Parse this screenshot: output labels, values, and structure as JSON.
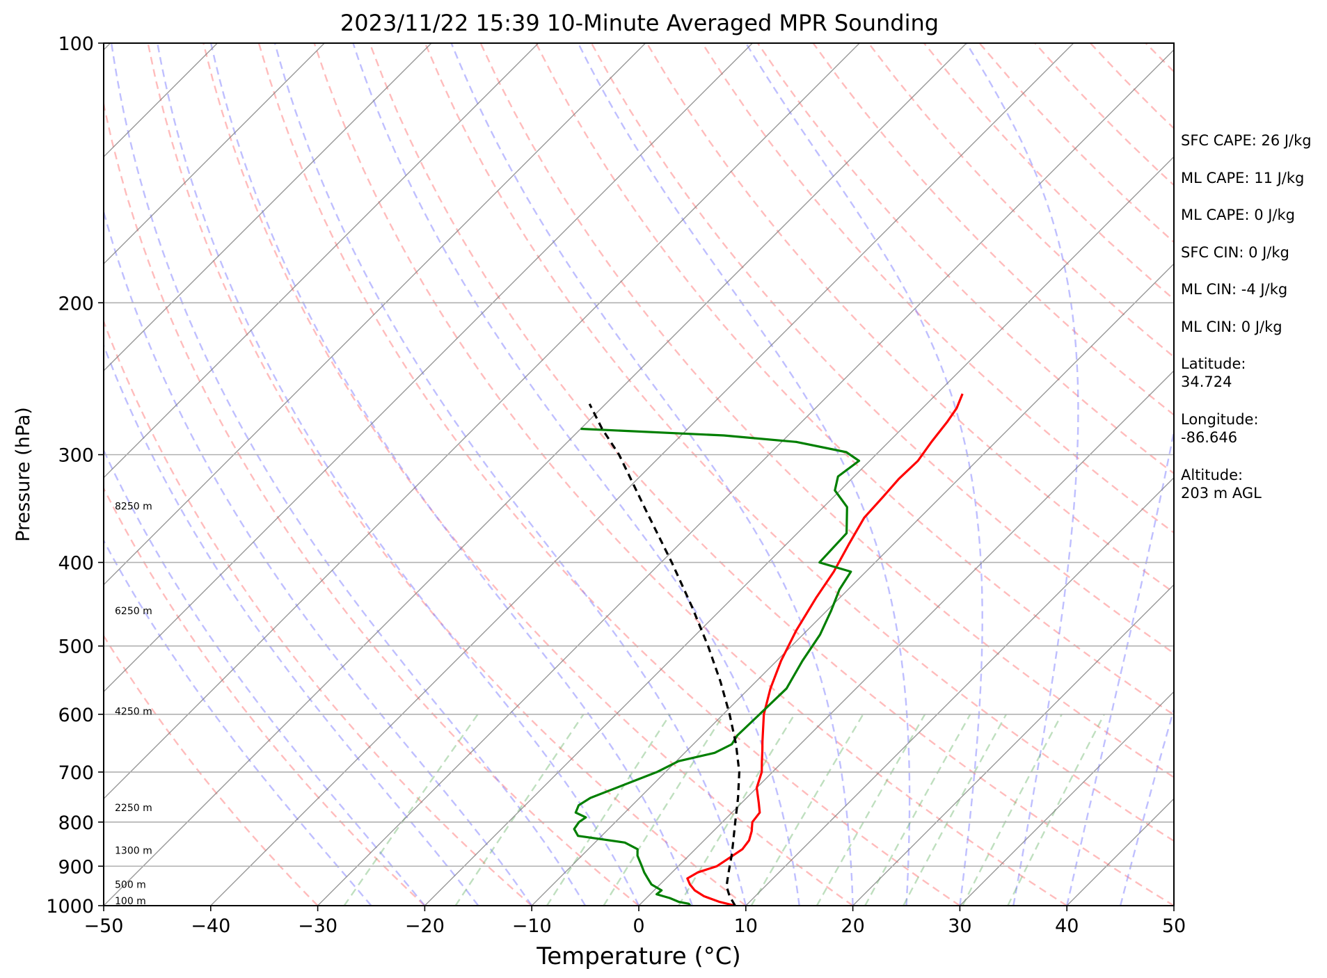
{
  "chart_data": {
    "type": "skew-t",
    "title": "2023/11/22 15:39 10-Minute Averaged MPR Sounding",
    "xlabel": "Temperature (°C)",
    "ylabel": "Pressure (hPa)",
    "xlim": [
      -50,
      50
    ],
    "ylim": [
      1000,
      100
    ],
    "y_scale": "log",
    "x_ticks": [
      -50,
      -40,
      -30,
      -20,
      -10,
      0,
      10,
      20,
      30,
      40,
      50
    ],
    "x_tick_labels": [
      "−50",
      "−40",
      "−30",
      "−20",
      "−10",
      "0",
      "10",
      "20",
      "30",
      "40",
      "50"
    ],
    "y_ticks": [
      1000,
      900,
      800,
      700,
      600,
      500,
      400,
      300,
      200,
      100
    ],
    "y_tick_labels": [
      "1000",
      "900",
      "800",
      "700",
      "600",
      "500",
      "400",
      "300",
      "200",
      "100"
    ],
    "grid": true,
    "series": [
      {
        "key": "temperature",
        "color": "#ff0000",
        "points": [
          [
            1000,
            9.0
          ],
          [
            990,
            7.2
          ],
          [
            975,
            5.2
          ],
          [
            960,
            3.8
          ],
          [
            945,
            2.8
          ],
          [
            930,
            2.0
          ],
          [
            915,
            2.4
          ],
          [
            900,
            3.6
          ],
          [
            880,
            4.0
          ],
          [
            860,
            4.4
          ],
          [
            840,
            4.2
          ],
          [
            820,
            3.6
          ],
          [
            800,
            2.8
          ],
          [
            780,
            2.6
          ],
          [
            760,
            1.6
          ],
          [
            730,
            0.0
          ],
          [
            700,
            -1.0
          ],
          [
            680,
            -2.0
          ],
          [
            660,
            -3.0
          ],
          [
            645,
            -3.8
          ],
          [
            600,
            -6.2
          ],
          [
            560,
            -8.0
          ],
          [
            520,
            -9.6
          ],
          [
            480,
            -11.0
          ],
          [
            440,
            -12.2
          ],
          [
            410,
            -13.0
          ],
          [
            380,
            -14.2
          ],
          [
            355,
            -15.2
          ],
          [
            335,
            -15.4
          ],
          [
            320,
            -15.6
          ],
          [
            305,
            -15.5
          ],
          [
            290,
            -16.0
          ],
          [
            275,
            -16.4
          ],
          [
            265,
            -16.8
          ],
          [
            255,
            -17.6
          ]
        ]
      },
      {
        "key": "dewpoint",
        "color": "#007f00",
        "points": [
          [
            1000,
            4.8
          ],
          [
            995,
            4.5
          ],
          [
            990,
            3.4
          ],
          [
            980,
            2.2
          ],
          [
            970,
            0.6
          ],
          [
            960,
            0.7
          ],
          [
            945,
            -0.8
          ],
          [
            930,
            -1.7
          ],
          [
            915,
            -2.6
          ],
          [
            900,
            -3.4
          ],
          [
            875,
            -4.8
          ],
          [
            860,
            -5.4
          ],
          [
            845,
            -7.2
          ],
          [
            830,
            -12.2
          ],
          [
            815,
            -13.2
          ],
          [
            800,
            -13.4
          ],
          [
            790,
            -13.2
          ],
          [
            780,
            -14.6
          ],
          [
            765,
            -15.0
          ],
          [
            750,
            -14.6
          ],
          [
            700,
            -10.8
          ],
          [
            680,
            -9.8
          ],
          [
            665,
            -7.2
          ],
          [
            650,
            -6.4
          ],
          [
            635,
            -6.7
          ],
          [
            600,
            -6.6
          ],
          [
            560,
            -6.5
          ],
          [
            520,
            -7.6
          ],
          [
            485,
            -8.4
          ],
          [
            455,
            -9.6
          ],
          [
            430,
            -10.8
          ],
          [
            410,
            -11.4
          ],
          [
            400,
            -15.2
          ],
          [
            370,
            -15.4
          ],
          [
            345,
            -17.8
          ],
          [
            330,
            -20.5
          ],
          [
            318,
            -21.5
          ],
          [
            305,
            -21.0
          ],
          [
            298,
            -23.0
          ],
          [
            290,
            -28.6
          ],
          [
            285,
            -36.0
          ],
          [
            280,
            -50.0
          ]
        ]
      },
      {
        "key": "parcel",
        "color": "#000000",
        "style": "dashed",
        "points": [
          [
            1000,
            9.0
          ],
          [
            975,
            7.6
          ],
          [
            950,
            6.4
          ],
          [
            925,
            5.6
          ],
          [
            900,
            4.8
          ],
          [
            875,
            4.0
          ],
          [
            850,
            3.1
          ],
          [
            800,
            1.2
          ],
          [
            750,
            -0.8
          ],
          [
            700,
            -3.1
          ],
          [
            650,
            -6.0
          ],
          [
            600,
            -9.4
          ],
          [
            550,
            -13.3
          ],
          [
            500,
            -17.8
          ],
          [
            450,
            -23.0
          ],
          [
            400,
            -29.0
          ],
          [
            350,
            -36.0
          ],
          [
            300,
            -44.0
          ],
          [
            280,
            -48.0
          ],
          [
            262,
            -51.5
          ]
        ]
      }
    ],
    "height_labels": [
      {
        "pressure": 987,
        "text": "100 m"
      },
      {
        "pressure": 945,
        "text": "500 m"
      },
      {
        "pressure": 863,
        "text": "1300 m"
      },
      {
        "pressure": 770,
        "text": "2250 m"
      },
      {
        "pressure": 595,
        "text": "4250 m"
      },
      {
        "pressure": 455,
        "text": "6250 m"
      },
      {
        "pressure": 344,
        "text": "8250 m"
      }
    ],
    "annotations": [
      "SFC CAPE: 26 J/kg",
      "ML CAPE: 11 J/kg",
      "ML CAPE: 0 J/kg",
      "SFC CIN: 0 J/kg",
      "ML CIN: -4 J/kg",
      "ML CIN: 0 J/kg",
      "Latitude:",
      "34.724",
      "Longitude:",
      "-86.646",
      "Altitude:",
      "203 m AGL"
    ],
    "colors": {
      "dry_adiabats": "#ff9090",
      "moist_adiabats": "#8080ff",
      "mixing_ratio": "#60b060",
      "isotherms": "#7f7f7f"
    }
  }
}
